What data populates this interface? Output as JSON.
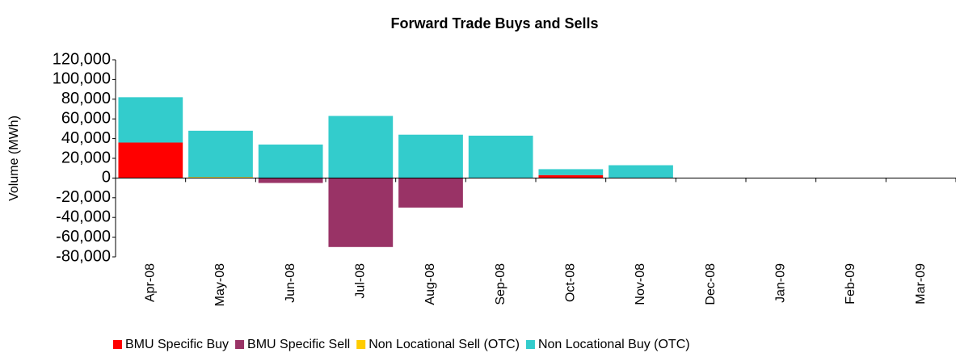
{
  "chart_data": {
    "type": "stacked_bar",
    "title": "Forward Trade Buys and Sells",
    "ylabel": "Volume (MWh)",
    "categories": [
      "Apr-08",
      "May-08",
      "Jun-08",
      "Jul-08",
      "Aug-08",
      "Sep-08",
      "Oct-08",
      "Nov-08",
      "Dec-08",
      "Jan-09",
      "Feb-09",
      "Mar-09"
    ],
    "series": [
      {
        "name": "BMU Specific Buy",
        "color": "#ff0000",
        "values": [
          36000,
          0,
          0,
          0,
          0,
          0,
          3000,
          0,
          0,
          0,
          0,
          0
        ]
      },
      {
        "name": "BMU Specific Sell",
        "color": "#993366",
        "values": [
          0,
          0,
          -5000,
          -70000,
          -30000,
          0,
          0,
          0,
          0,
          0,
          0,
          0
        ]
      },
      {
        "name": "Non Locational Sell (OTC)",
        "color": "#ffcc00",
        "values": [
          0,
          1000,
          0,
          0,
          0,
          0,
          0,
          0,
          0,
          0,
          0,
          0
        ]
      },
      {
        "name": "Non Locational Buy (OTC)",
        "color": "#33cccc",
        "values": [
          46000,
          47000,
          34000,
          63000,
          44000,
          43000,
          6000,
          13000,
          0,
          0,
          0,
          0
        ]
      }
    ],
    "ylim": [
      -80000,
      120000
    ],
    "yticks": [
      {
        "value": -80000,
        "label": "-80,000"
      },
      {
        "value": -60000,
        "label": "-60,000"
      },
      {
        "value": -40000,
        "label": "-40,000"
      },
      {
        "value": -20000,
        "label": "-20,000"
      },
      0,
      {
        "value": 20000,
        "label": "20,000"
      },
      {
        "value": 40000,
        "label": "40,000"
      },
      {
        "value": 60000,
        "label": "60,000"
      },
      {
        "value": 80000,
        "label": "80,000"
      },
      {
        "value": 100000,
        "label": "100,000"
      },
      {
        "value": 120000,
        "label": "120,000"
      }
    ],
    "legend": "bottom"
  }
}
